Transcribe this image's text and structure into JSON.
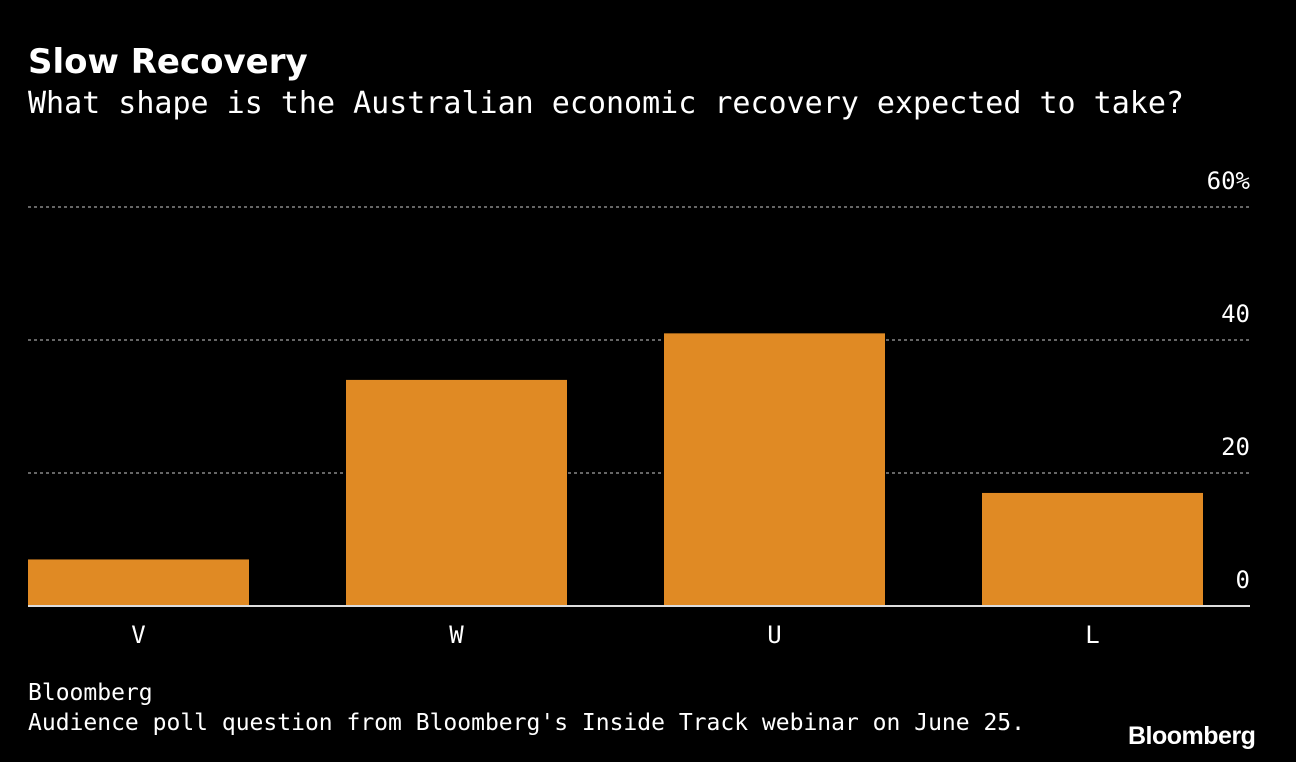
{
  "header": {
    "title": "Slow Recovery",
    "subtitle": "What shape is the Australian economic recovery expected to take?"
  },
  "footer": {
    "source": "Bloomberg",
    "note": "Audience poll question from Bloomberg's Inside Track webinar on June 25.",
    "logo": "Bloomberg"
  },
  "chart_data": {
    "type": "bar",
    "categories": [
      "V",
      "W",
      "U",
      "L"
    ],
    "values": [
      7,
      34,
      41,
      17
    ],
    "ylim": [
      0,
      60
    ],
    "yticks": [
      0,
      20,
      40,
      60
    ],
    "ytick_labels": [
      "0",
      "20",
      "40",
      "60%"
    ],
    "grid": true,
    "bar_color": "#E08A24"
  }
}
